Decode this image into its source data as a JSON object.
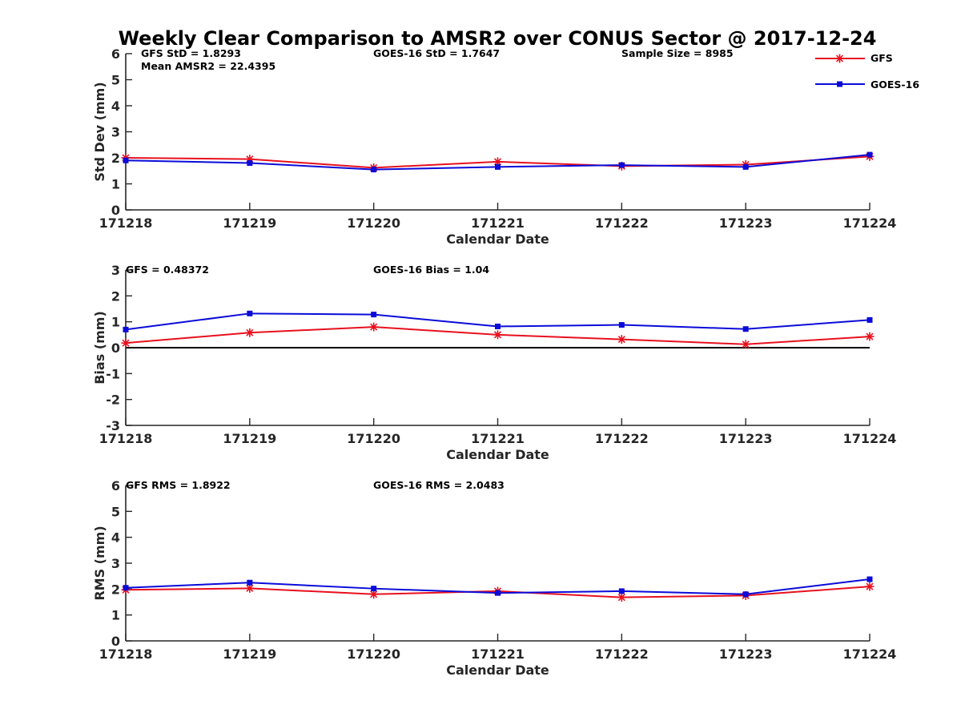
{
  "chart_data": [
    {
      "type": "line",
      "title": "Weekly Clear Comparison to AMSR2 over CONUS Sector @ 2017-12-24",
      "xlabel": "Calendar Date",
      "ylabel": "Std Dev (mm)",
      "x": [
        "171218",
        "171219",
        "171220",
        "171221",
        "171222",
        "171223",
        "171224"
      ],
      "ylim": [
        0,
        6
      ],
      "yticks": [
        "0",
        "1",
        "2",
        "3",
        "4",
        "5",
        "6"
      ],
      "zero_line": false,
      "annotations": [
        "GFS StD = 1.8293",
        "Mean AMSR2 = 22.4395",
        "GOES-16 StD = 1.7647",
        "Sample Size = 8985"
      ],
      "legend": {
        "position": "top-right",
        "entries": [
          "GFS",
          "GOES-16"
        ]
      },
      "series": [
        {
          "name": "GFS",
          "color": "#e8101e",
          "marker": "asterisk",
          "values": [
            2.0,
            1.95,
            1.62,
            1.85,
            1.68,
            1.74,
            2.05
          ]
        },
        {
          "name": "GOES-16",
          "color": "#0b0bd9",
          "marker": "square",
          "values": [
            1.9,
            1.8,
            1.55,
            1.65,
            1.72,
            1.65,
            2.12
          ]
        }
      ]
    },
    {
      "type": "line",
      "xlabel": "Calendar Date",
      "ylabel": "Bias (mm)",
      "x": [
        "171218",
        "171219",
        "171220",
        "171221",
        "171222",
        "171223",
        "171224"
      ],
      "ylim": [
        -3,
        3
      ],
      "yticks": [
        "-3",
        "-2",
        "-1",
        "0",
        "1",
        "2",
        "3"
      ],
      "zero_line": true,
      "annotations": [
        "GFS = 0.48372",
        "GOES-16 Bias  = 1.04"
      ],
      "series": [
        {
          "name": "GFS",
          "color": "#e8101e",
          "marker": "asterisk",
          "values": [
            0.18,
            0.58,
            0.8,
            0.5,
            0.32,
            0.13,
            0.43
          ]
        },
        {
          "name": "GOES-16",
          "color": "#0b0bd9",
          "marker": "square",
          "values": [
            0.7,
            1.32,
            1.28,
            0.82,
            0.88,
            0.72,
            1.07
          ]
        }
      ]
    },
    {
      "type": "line",
      "xlabel": "Calendar Date",
      "ylabel": "RMS (mm)",
      "x": [
        "171218",
        "171219",
        "171220",
        "171221",
        "171222",
        "171223",
        "171224"
      ],
      "ylim": [
        0,
        6
      ],
      "yticks": [
        "0",
        "1",
        "2",
        "3",
        "4",
        "5",
        "6"
      ],
      "zero_line": false,
      "annotations": [
        "GFS RMS = 1.8922",
        "GOES-16 RMS = 2.0483"
      ],
      "series": [
        {
          "name": "GFS",
          "color": "#e8101e",
          "marker": "asterisk",
          "values": [
            1.97,
            2.03,
            1.8,
            1.92,
            1.68,
            1.75,
            2.1
          ]
        },
        {
          "name": "GOES-16",
          "color": "#0b0bd9",
          "marker": "square",
          "values": [
            2.05,
            2.25,
            2.02,
            1.85,
            1.92,
            1.8,
            2.38
          ]
        }
      ]
    }
  ]
}
